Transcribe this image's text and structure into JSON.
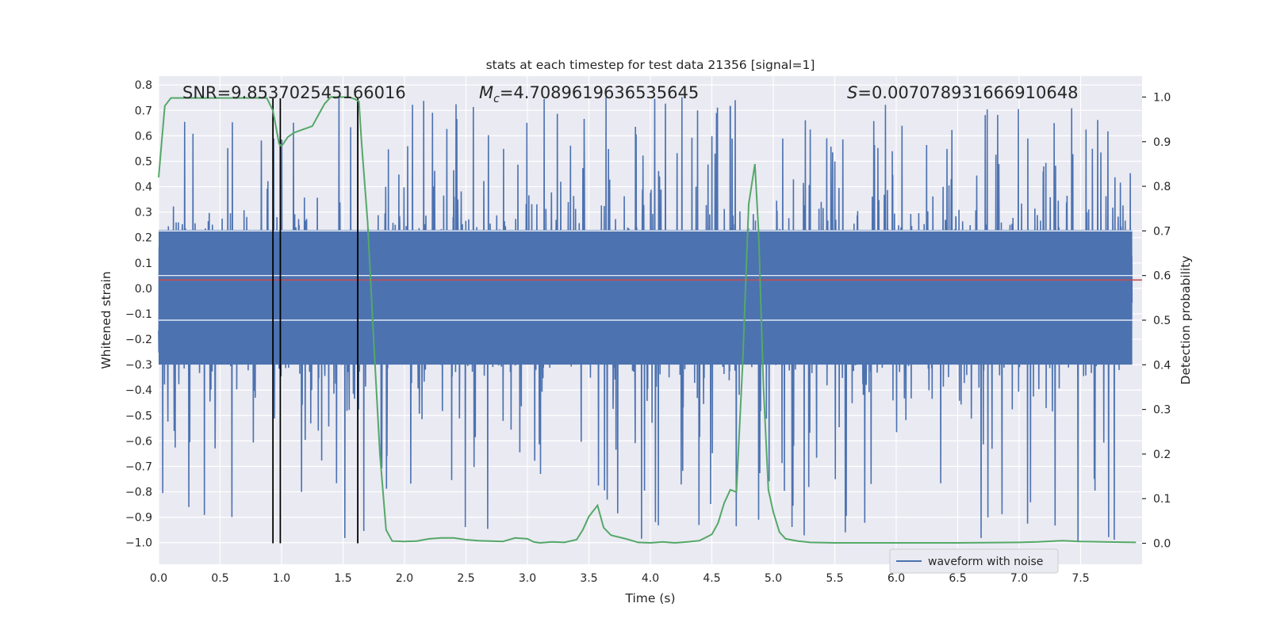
{
  "chart_data": {
    "type": "line",
    "title": "stats at each timestep for test data 21356 [signal=1]",
    "xlabel": "Time (s)",
    "ylabel": "Whitened strain",
    "y2label": "Detection probability",
    "xlim": [
      0.0,
      8.0
    ],
    "ylim": [
      -1.085,
      0.835
    ],
    "y2lim": [
      -0.047,
      1.047
    ],
    "xticks": [
      "0.0",
      "0.5",
      "1.0",
      "1.5",
      "2.0",
      "2.5",
      "3.0",
      "3.5",
      "4.0",
      "4.5",
      "5.0",
      "5.5",
      "6.0",
      "6.5",
      "7.0",
      "7.5"
    ],
    "yticks": [
      "0.8",
      "0.7",
      "0.6",
      "0.5",
      "0.4",
      "0.3",
      "0.2",
      "0.1",
      "0.0",
      "−0.1",
      "−0.2",
      "−0.3",
      "−0.4",
      "−0.5",
      "−0.6",
      "−0.7",
      "−0.8",
      "−0.9",
      "−1.0"
    ],
    "y2ticks": [
      "1.0",
      "0.9",
      "0.8",
      "0.7",
      "0.6",
      "0.5",
      "0.4",
      "0.3",
      "0.2",
      "0.1",
      "0.0"
    ],
    "grid": true,
    "legend": {
      "placement": "lower-right",
      "entries": [
        "waveform with noise"
      ]
    },
    "annotations": {
      "snr": "SNR=9.853702545166016",
      "mc_symbol": "M",
      "mc_sub": "c",
      "mc_value": "=4.7089619636535645",
      "s_symbol": "S",
      "s_value": "=0.007078931666910648"
    },
    "threshold": 0.59,
    "event_lines_x": [
      0.93,
      0.99,
      1.62
    ],
    "series": [
      {
        "name": "waveform with noise",
        "kind": "noisy-strain",
        "approx_band": [
          -0.3,
          0.23
        ],
        "approx_extremes": [
          -1.0,
          0.76
        ]
      },
      {
        "kind": "detection-probability",
        "x": [
          0.0,
          0.05,
          0.1,
          0.2,
          0.3,
          0.4,
          0.5,
          0.6,
          0.7,
          0.8,
          0.88,
          0.93,
          0.98,
          1.0,
          1.05,
          1.1,
          1.2,
          1.25,
          1.3,
          1.35,
          1.4,
          1.45,
          1.5,
          1.55,
          1.6,
          1.63,
          1.65,
          1.7,
          1.75,
          1.8,
          1.85,
          1.9,
          2.0,
          2.1,
          2.2,
          2.3,
          2.4,
          2.5,
          2.6,
          2.7,
          2.8,
          2.9,
          3.0,
          3.05,
          3.1,
          3.2,
          3.3,
          3.4,
          3.45,
          3.5,
          3.57,
          3.62,
          3.68,
          3.8,
          3.9,
          4.0,
          4.1,
          4.2,
          4.3,
          4.4,
          4.5,
          4.55,
          4.6,
          4.65,
          4.7,
          4.75,
          4.8,
          4.85,
          4.88,
          4.92,
          4.96,
          5.0,
          5.05,
          5.1,
          5.2,
          5.3,
          5.5,
          6.0,
          6.5,
          7.0,
          7.15,
          7.35,
          7.5,
          7.95
        ],
        "y": [
          0.82,
          0.98,
          0.998,
          0.998,
          0.998,
          0.998,
          0.998,
          0.998,
          0.998,
          0.998,
          0.998,
          0.97,
          0.895,
          0.89,
          0.91,
          0.92,
          0.93,
          0.935,
          0.96,
          0.985,
          1.0,
          1.0,
          1.0,
          1.0,
          0.995,
          0.99,
          0.9,
          0.72,
          0.45,
          0.2,
          0.03,
          0.005,
          0.004,
          0.005,
          0.01,
          0.012,
          0.012,
          0.008,
          0.006,
          0.005,
          0.004,
          0.012,
          0.01,
          0.003,
          0.001,
          0.003,
          0.002,
          0.008,
          0.03,
          0.06,
          0.085,
          0.035,
          0.018,
          0.01,
          0.002,
          0.001,
          0.003,
          0.001,
          0.003,
          0.006,
          0.02,
          0.045,
          0.09,
          0.12,
          0.115,
          0.4,
          0.76,
          0.85,
          0.7,
          0.35,
          0.12,
          0.07,
          0.025,
          0.01,
          0.005,
          0.002,
          0.001,
          0.001,
          0.001,
          0.002,
          0.003,
          0.006,
          0.004,
          0.002
        ]
      }
    ]
  },
  "colors": {
    "background": "#ffffff",
    "plot_area": "#eaeaf2",
    "grid": "#ffffff",
    "waveform": "#4c72b0",
    "probability": "#55a868",
    "threshold": "#c44e52",
    "event_lines": "#000000",
    "text": "#262626"
  }
}
